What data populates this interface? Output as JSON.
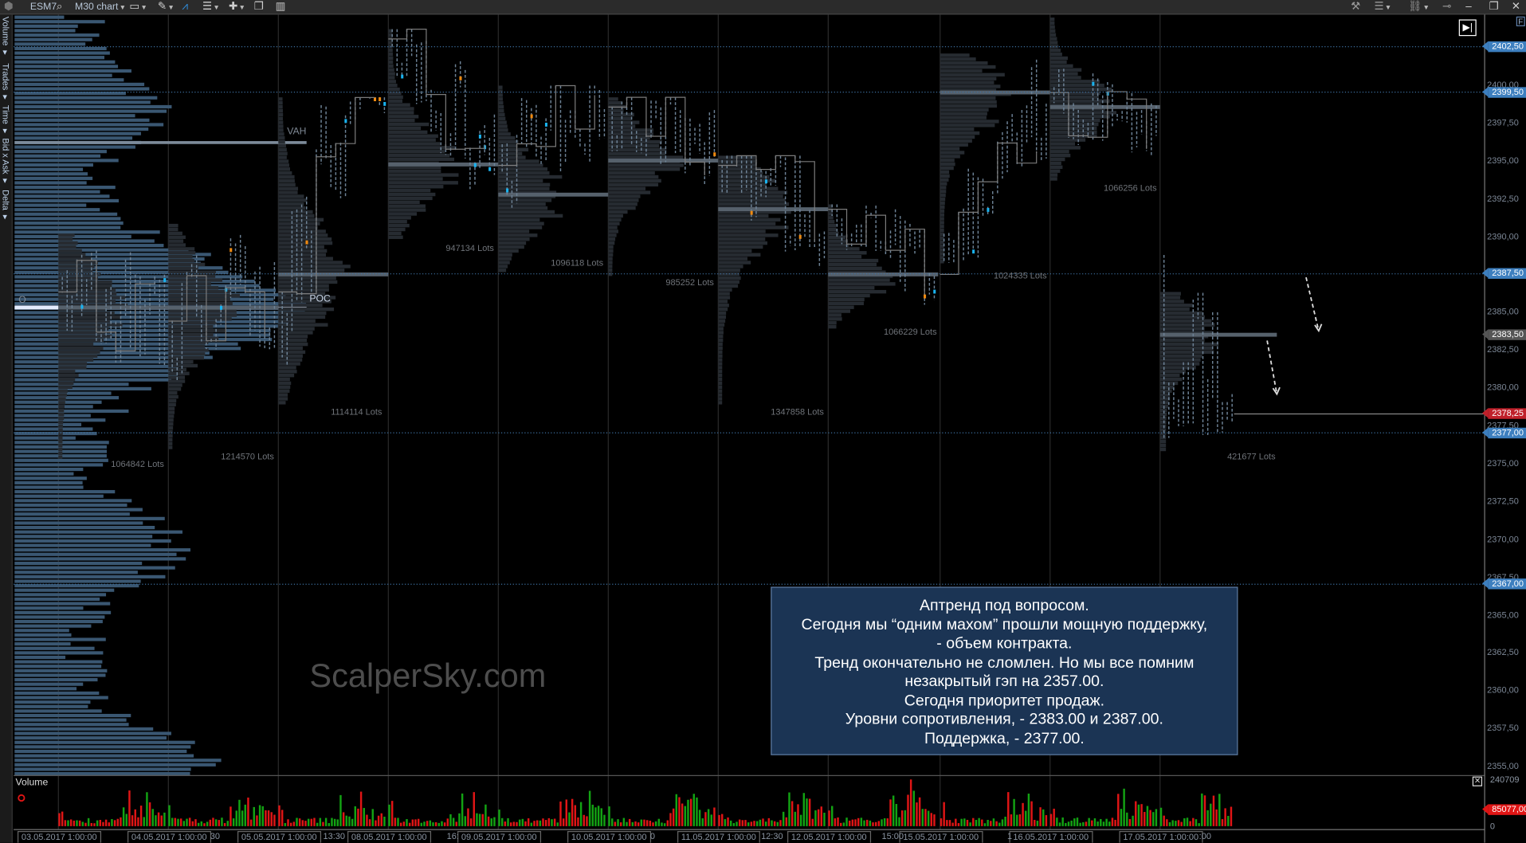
{
  "toolbar": {
    "symbol": "ESM7",
    "chart_type": "M30 chart",
    "icons_left": [
      "app-logo-icon",
      "search-icon",
      "monitor-icon",
      "pencil-icon",
      "chart-line-icon",
      "indicators-icon",
      "crosshair-icon",
      "window-icon",
      "layout-icon"
    ],
    "icons_right": [
      "tools-icon",
      "list-icon",
      "link-icon",
      "pin-icon",
      "minimize-icon",
      "restore-icon",
      "close-icon"
    ],
    "accent": "#2f8fe0"
  },
  "side_tabs": [
    "Volume ▾",
    "Trades ▾",
    "Time ▾",
    "Bid x Ask ▾",
    "Delta ▾"
  ],
  "price_axis": {
    "ticks": [
      "2400,00",
      "2397,50",
      "2395,00",
      "2392,50",
      "2390,00",
      "2385,00",
      "2382,50",
      "2380,00",
      "2377,50",
      "2375,00",
      "2372,50",
      "2370,00",
      "2367,50",
      "2365,00",
      "2362,50",
      "2360,00",
      "2357,50",
      "2355,00"
    ],
    "markers": [
      {
        "label": "2402,50",
        "color": "#3d7fbf"
      },
      {
        "label": "2399,50",
        "color": "#3d7fbf"
      },
      {
        "label": "2387,50",
        "color": "#3d7fbf"
      },
      {
        "label": "2383,50",
        "color": "#555555"
      },
      {
        "label": "2378,25",
        "color": "#c0202a"
      },
      {
        "label": "2377,00",
        "color": "#3d7fbf"
      },
      {
        "label": "2367,00",
        "color": "#3d7fbf"
      }
    ],
    "f_button": "F"
  },
  "profile_labels": {
    "poc": "POC",
    "vah": "VAH",
    "o": "O"
  },
  "lots": [
    "1064842 Lots",
    "1214570 Lots",
    "1114114 Lots",
    "947134 Lots",
    "1096118 Lots",
    "985252 Lots",
    "1347858 Lots",
    "1066229 Lots",
    "1024335 Lots",
    "1066256 Lots",
    "421677 Lots"
  ],
  "watermark": "ScalperSky.com",
  "note": {
    "lines": [
      "Аптренд под вопросом.",
      "Сегодня мы “одним махом” прошли мощную поддержку,",
      "- объем контракта.",
      "Тренд окончательно не сломлен. Но мы все помним",
      "незакрытый гэп на 2357.00.",
      "Сегодня приоритет продаж.",
      "Уровни сопротивления, - 2383.00 и 2387.00.",
      "Поддержка, - 2377.00."
    ],
    "background": "#1b3454"
  },
  "volume_panel": {
    "title": "Volume",
    "axis_max": "240709",
    "current": "85077,00",
    "axis_min": "0",
    "up_color": "#13a313",
    "down_color": "#e01515"
  },
  "time_axis": {
    "dates": [
      "03.05.2017 1:00:00",
      "04.05.2017 1:00:00",
      "05.05.2017 1:00:00",
      "08.05.2017 1:00:00",
      "09.05.2017 1:00:00",
      "10.05.2017 1:00:00",
      "11.05.2017 1:00:00",
      "12.05.2017 1:00:00",
      "15.05.2017 1:00:00",
      "16.05.2017 1:00:00",
      "17.05.2017 1:00:00"
    ],
    "partial": [
      "30",
      "13:30",
      "16:",
      "0",
      "12:30",
      "15:00",
      "1",
      ":00"
    ]
  }
}
